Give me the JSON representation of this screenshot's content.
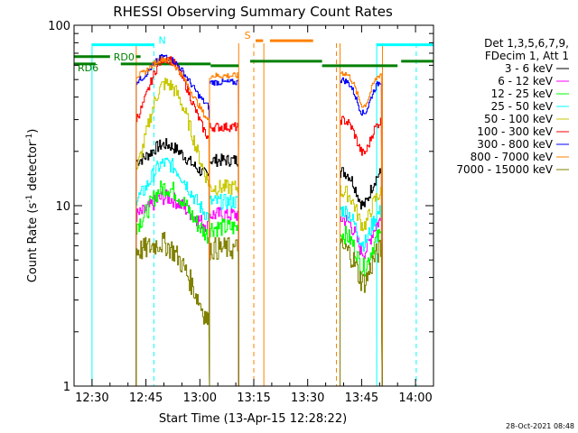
{
  "chart_data": {
    "type": "line",
    "title": "RHESSI Observing Summary Count Rates",
    "xlabel": "Start Time (13-Apr-15 12:28:22)",
    "ylabel_main": "Count Rate (s",
    "ylabel_sup1": "-1",
    "ylabel_mid": " detector",
    "ylabel_sup2": "-1",
    "ylabel_end": ")",
    "yscale": "log",
    "xlim_minutes": [
      -5,
      95
    ],
    "ylim": [
      1,
      100
    ],
    "xticks": [
      {
        "m": 0,
        "label": "12:30"
      },
      {
        "m": 15,
        "label": "12:45"
      },
      {
        "m": 30,
        "label": "13:00"
      },
      {
        "m": 45,
        "label": "13:15"
      },
      {
        "m": 60,
        "label": "13:30"
      },
      {
        "m": 75,
        "label": "13:45"
      },
      {
        "m": 90,
        "label": "14:00"
      }
    ],
    "yticks": [
      {
        "v": 1,
        "label": "1"
      },
      {
        "v": 10,
        "label": "10"
      },
      {
        "v": 100,
        "label": "100"
      }
    ],
    "legend_header": [
      "Det 1,3,5,6,7,9,",
      "FDecim 1, Att 1"
    ],
    "legend_placement": "right",
    "series": [
      {
        "name": "3 - 6 keV",
        "color": "#000000",
        "base": 17,
        "peak": 23,
        "tail": 14,
        "seg2": 15.5,
        "noise": 0.08
      },
      {
        "name": "6 - 12 keV",
        "color": "#ff00ff",
        "base": 8.5,
        "peak": 11.5,
        "tail": 7.5,
        "seg2": 8.5,
        "noise": 0.1
      },
      {
        "name": "12 - 25 keV",
        "color": "#00ff00",
        "base": 7.2,
        "peak": 13,
        "tail": 6.3,
        "seg2": 7,
        "noise": 0.12
      },
      {
        "name": "25 - 50 keV",
        "color": "#00ffff",
        "base": 10,
        "peak": 18,
        "tail": 8,
        "seg2": 9.5,
        "noise": 0.1
      },
      {
        "name": "50 - 100 keV",
        "color": "#c8c800",
        "base": 12,
        "peak": 48,
        "tail": 10.5,
        "seg2": 12,
        "noise": 0.1
      },
      {
        "name": "100 - 300 keV",
        "color": "#ff0000",
        "base": 26,
        "peak": 68,
        "tail": 20,
        "seg2": 30,
        "noise": 0.06
      },
      {
        "name": "300 - 800 keV",
        "color": "#0000ff",
        "base": 46,
        "peak": 72,
        "tail": 33,
        "seg2": 50,
        "noise": 0.04
      },
      {
        "name": "800 - 7000 keV",
        "color": "#ff8000",
        "base": 50,
        "peak": 74,
        "tail": 27,
        "seg2": 55,
        "noise": 0.04
      },
      {
        "name": "7000 - 15000 keV",
        "color": "#808000",
        "base": 5.5,
        "peak": 7.5,
        "tail": 2,
        "seg2": 5.8,
        "noise": 0.15
      }
    ],
    "segments": [
      {
        "start": 12.3,
        "end": 32.7,
        "shape": "flare"
      },
      {
        "start": 32.7,
        "end": 40.8,
        "shape": "flat"
      },
      {
        "start": 69.0,
        "end": 80.7,
        "shape": "dip"
      }
    ],
    "flags": [
      {
        "label": "N",
        "color": "#00ffff",
        "y": 78
      },
      {
        "label": "RD0",
        "color": "#008000",
        "y": 67
      },
      {
        "label": "RD6",
        "color": "#008000",
        "y": 61
      },
      {
        "label": "S",
        "color": "#ff8000",
        "y": 86
      }
    ]
  },
  "footer": {
    "timestamp": "28-Oct-2021 08:48"
  }
}
